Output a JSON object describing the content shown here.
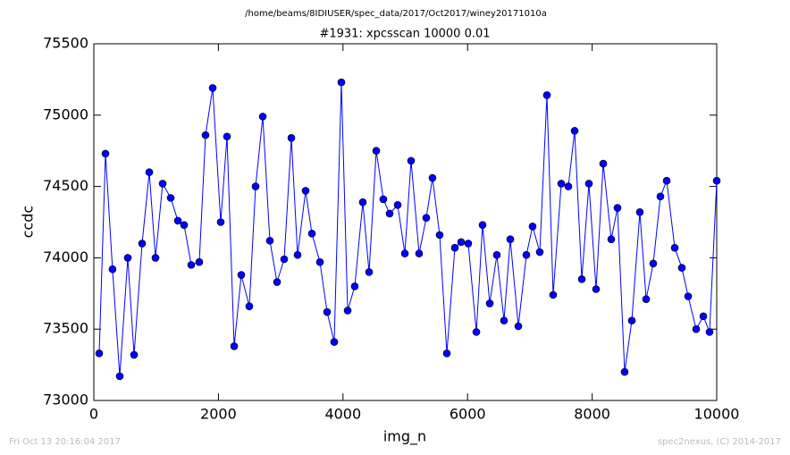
{
  "chart_data": {
    "type": "line",
    "suptitle": "/home/beams/8IDIUSER/spec_data/2017/Oct2017/winey20171010a",
    "title": "#1931: xpcsscan 10000 0.01",
    "xlabel": "img_n",
    "ylabel": "ccdc",
    "color": "#0000ff",
    "marker": "o",
    "xlim": [
      0,
      10000
    ],
    "xticks": [
      0,
      2000,
      4000,
      6000,
      8000,
      10000
    ],
    "ylim": [
      73000,
      75500
    ],
    "yticks": [
      73000,
      73500,
      74000,
      74500,
      75000,
      75500
    ],
    "x": [
      86,
      187,
      300,
      416,
      545,
      646,
      775,
      890,
      990,
      1105,
      1234,
      1349,
      1449,
      1564,
      1693,
      1793,
      1908,
      2037,
      2138,
      2253,
      2367,
      2496,
      2597,
      2712,
      2826,
      2941,
      3056,
      3171,
      3271,
      3400,
      3501,
      3630,
      3745,
      3859,
      3974,
      4075,
      4189,
      4318,
      4419,
      4534,
      4648,
      4749,
      4878,
      4993,
      5093,
      5222,
      5337,
      5437,
      5552,
      5667,
      5796,
      5897,
      6011,
      6141,
      6241,
      6356,
      6470,
      6585,
      6686,
      6815,
      6944,
      7044,
      7159,
      7274,
      7374,
      7504,
      7618,
      7719,
      7834,
      7948,
      8063,
      8178,
      8307,
      8407,
      8522,
      8637,
      8766,
      8867,
      8981,
      9096,
      9197,
      9326,
      9440,
      9541,
      9670,
      9785,
      9885,
      10000
    ],
    "values": [
      73330,
      74730,
      73920,
      73170,
      74000,
      73320,
      74100,
      74600,
      74000,
      74520,
      74420,
      74260,
      74230,
      73950,
      73970,
      74860,
      75190,
      74250,
      74850,
      73380,
      73880,
      73660,
      74500,
      74990,
      74120,
      73830,
      73990,
      74840,
      74020,
      74470,
      74170,
      73970,
      73620,
      73410,
      75230,
      73630,
      73800,
      74390,
      73900,
      74750,
      74410,
      74310,
      74370,
      74030,
      74680,
      74030,
      74280,
      74560,
      74160,
      73330,
      74070,
      74110,
      74100,
      73480,
      74230,
      73680,
      74020,
      73560,
      74130,
      73520,
      74020,
      74220,
      74040,
      75140,
      73740,
      74520,
      74500,
      74890,
      73850,
      74520,
      73780,
      74660,
      74130,
      74350,
      73200,
      73560,
      74320,
      73710,
      73960,
      74430,
      74540,
      74070,
      73930,
      73730,
      73500,
      73590,
      73480,
      74540
    ]
  },
  "footer": {
    "left": "Fri Oct 13 20:16:04 2017",
    "right": "spec2nexus, (C) 2014-2017"
  }
}
